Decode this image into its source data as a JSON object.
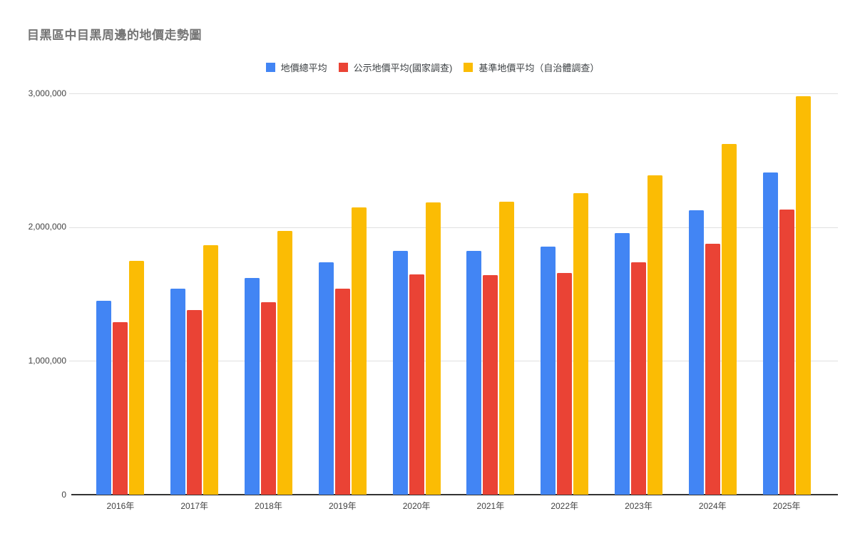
{
  "page": {
    "background": "#ffffff"
  },
  "title": "目黑區中目黑周邊的地價走勢圖",
  "chart_data": {
    "type": "bar",
    "title": "目黑區中目黑周邊的地價走勢圖",
    "categories": [
      "2016年",
      "2017年",
      "2018年",
      "2019年",
      "2020年",
      "2021年",
      "2022年",
      "2023年",
      "2024年",
      "2025年"
    ],
    "series": [
      {
        "name": "地價總平均",
        "color": "#4285F4",
        "values": [
          1450000,
          1540000,
          1620000,
          1740000,
          1825000,
          1820000,
          1855000,
          1955000,
          2125000,
          2410000
        ]
      },
      {
        "name": "公示地價平均(國家調查)",
        "color": "#EA4335",
        "values": [
          1290000,
          1380000,
          1440000,
          1540000,
          1645000,
          1640000,
          1655000,
          1735000,
          1875000,
          2130000
        ]
      },
      {
        "name": "基準地價平均（自治體調查）",
        "color": "#FBBC04",
        "values": [
          1750000,
          1865000,
          1970000,
          2150000,
          2185000,
          2190000,
          2255000,
          2385000,
          2620000,
          2980000
        ]
      }
    ],
    "xlabel": "",
    "ylabel": "",
    "ylim": [
      0,
      3000000
    ],
    "yticks": {
      "values": [
        0,
        1000000,
        2000000,
        3000000
      ],
      "labels": [
        "0",
        "1,000,000",
        "2,000,000",
        "3,000,000"
      ]
    },
    "grid": true,
    "legend_position": "top",
    "axis_colors": {
      "gridline": "#e0e0e0",
      "baseline": "#333333",
      "tick_text": "#424242",
      "title_text": "#757575"
    }
  }
}
